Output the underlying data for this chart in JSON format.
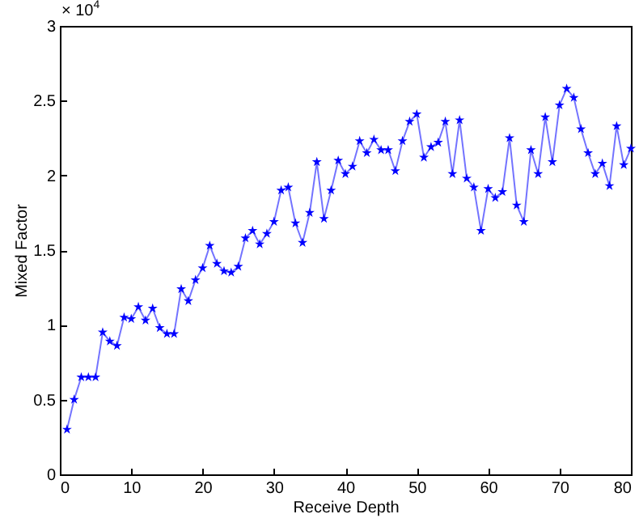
{
  "chart_data": {
    "type": "line",
    "xlabel": "Receive Depth",
    "ylabel": "Mixed Factor",
    "annotations": [
      "× 10$^{4}$"
    ],
    "x": [
      1,
      2,
      3,
      4,
      5,
      6,
      7,
      8,
      9,
      10,
      11,
      12,
      13,
      14,
      15,
      16,
      17,
      18,
      19,
      20,
      21,
      22,
      23,
      24,
      25,
      26,
      27,
      28,
      29,
      30,
      31,
      32,
      33,
      34,
      35,
      36,
      37,
      38,
      39,
      40,
      41,
      42,
      43,
      44,
      45,
      46,
      47,
      48,
      49,
      50,
      51,
      52,
      53,
      54,
      55,
      56,
      57,
      58,
      59,
      60,
      61,
      62,
      63,
      64,
      65,
      66,
      67,
      68,
      69,
      70,
      71,
      72,
      73,
      74,
      75,
      76,
      77,
      78,
      79,
      80
    ],
    "series": [
      {
        "color": "#0000ff",
        "values": [
          0.3,
          0.5,
          0.65,
          0.65,
          0.65,
          0.95,
          0.89,
          0.86,
          1.05,
          1.04,
          1.12,
          1.03,
          1.11,
          0.98,
          0.94,
          0.94,
          1.24,
          1.16,
          1.3,
          1.38,
          1.53,
          1.41,
          1.36,
          1.35,
          1.39,
          1.58,
          1.63,
          1.54,
          1.61,
          1.69,
          1.9,
          1.92,
          1.68,
          1.55,
          1.75,
          2.09,
          1.71,
          1.9,
          2.1,
          2.01,
          2.06,
          2.23,
          2.15,
          2.24,
          2.17,
          2.17,
          2.03,
          2.23,
          2.36,
          2.41,
          2.12,
          2.19,
          2.22,
          2.36,
          2.01,
          2.37,
          1.98,
          1.92,
          1.63,
          1.91,
          1.85,
          1.89,
          2.25,
          1.8,
          1.69,
          2.17,
          2.01,
          2.39,
          2.09,
          2.47,
          2.58,
          2.52,
          2.31,
          2.15,
          2.01,
          2.08,
          1.93,
          2.33,
          2.07,
          2.18
        ]
      }
    ],
    "xlim": [
      0,
      80
    ],
    "xticks": [
      0,
      10,
      20,
      30,
      40,
      50,
      60,
      70,
      80
    ],
    "ylim": [
      0,
      3
    ],
    "yticks": [
      0,
      0.5,
      1,
      1.5,
      2,
      2.5,
      3
    ],
    "grid": false,
    "marker": "star",
    "line_style": "solid"
  }
}
